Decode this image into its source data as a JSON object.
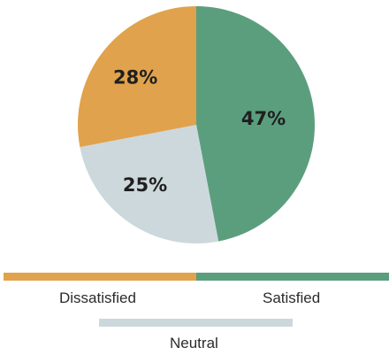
{
  "chart_data": {
    "type": "pie",
    "start_angle_deg": 0,
    "direction": "clockwise",
    "slices": [
      {
        "label": "Satisfied",
        "value": 47,
        "text": "47%",
        "color": "#5b9e7e"
      },
      {
        "label": "Neutral",
        "value": 25,
        "text": "25%",
        "color": "#cdd8dc"
      },
      {
        "label": "Dissatisfied",
        "value": 28,
        "text": "28%",
        "color": "#e0a24c"
      }
    ]
  },
  "legend": {
    "dissatisfied": {
      "label": "Dissatisfied",
      "color": "#e0a24c"
    },
    "satisfied": {
      "label": "Satisfied",
      "color": "#5b9e7e"
    },
    "neutral": {
      "label": "Neutral",
      "color": "#cdd8dc"
    }
  }
}
